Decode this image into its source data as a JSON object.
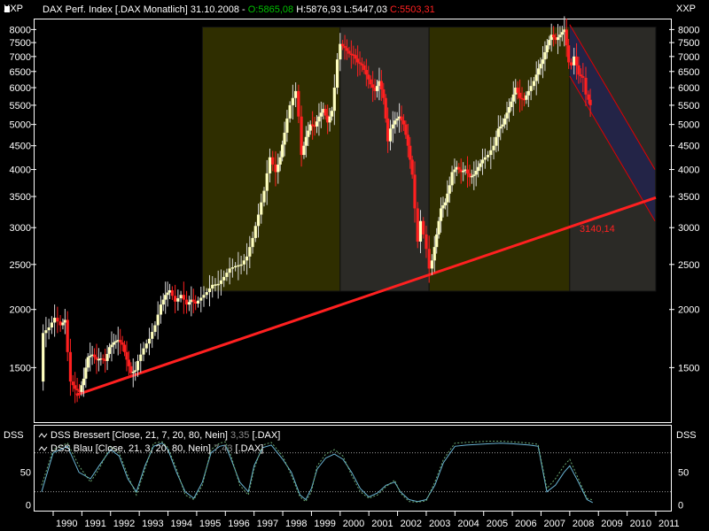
{
  "header": {
    "title": "DAX Perf. Index [.DAX  Monatlich] 31.10.2008 -",
    "open": "O:5865,08",
    "high": "H:5876,93",
    "low": "L:5447,03",
    "close": "C:5503,31",
    "colors": {
      "open": "#00c000",
      "high": "#ffffff",
      "low": "#ffffff",
      "close": "#ff2020"
    }
  },
  "price_axis_label": "XXP",
  "indicator_axis_label": "DSS",
  "trendline_label": "3140,14",
  "indicator": {
    "legend1_prefix": "DSS Bressert [Close, 21, 7, 20, 80, Nein]",
    "legend1_value": "3,35",
    "legend1_suffix": "[.DAX]",
    "legend2_prefix": "DSS Blau [Close, 21, 3, 20, 80, Nein]",
    "legend2_value": "7,43",
    "legend2_suffix": "[.DAX]",
    "ticks": [
      "50",
      "0"
    ]
  },
  "chart_data": [
    {
      "type": "candlestick",
      "title": "DAX Perf. Index [.DAX  Monatlich] 31.10.2008",
      "y_scale": "log",
      "ylim": [
        1150,
        8300
      ],
      "xlim": [
        1989.6,
        2011.0
      ],
      "y_ticks": [
        1500,
        2000,
        2500,
        3000,
        3500,
        4000,
        4500,
        5000,
        5500,
        6000,
        6500,
        7000,
        7500,
        8000
      ],
      "x_ticks": [
        "1990",
        "1991",
        "1992",
        "1993",
        "1994",
        "1995",
        "1996",
        "1997",
        "1998",
        "1999",
        "2000",
        "2001",
        "2002",
        "2003",
        "2004",
        "2005",
        "2006",
        "2007",
        "2008",
        "2009",
        "2010",
        "2011"
      ],
      "grid": false,
      "prices": [
        [
          1989.6,
          1400
        ],
        [
          1989.7,
          1780
        ],
        [
          1989.9,
          1830
        ],
        [
          1990.1,
          1920
        ],
        [
          1990.3,
          1850
        ],
        [
          1990.45,
          1900
        ],
        [
          1990.55,
          1620
        ],
        [
          1990.65,
          1400
        ],
        [
          1990.8,
          1350
        ],
        [
          1990.95,
          1330
        ],
        [
          1991.1,
          1420
        ],
        [
          1991.25,
          1580
        ],
        [
          1991.4,
          1600
        ],
        [
          1991.55,
          1560
        ],
        [
          1991.7,
          1570
        ],
        [
          1991.85,
          1550
        ],
        [
          1992.0,
          1660
        ],
        [
          1992.15,
          1700
        ],
        [
          1992.3,
          1720
        ],
        [
          1992.45,
          1680
        ],
        [
          1992.6,
          1560
        ],
        [
          1992.75,
          1460
        ],
        [
          1992.9,
          1480
        ],
        [
          1993.0,
          1550
        ],
        [
          1993.2,
          1650
        ],
        [
          1993.4,
          1730
        ],
        [
          1993.6,
          1850
        ],
        [
          1993.8,
          2050
        ],
        [
          1993.95,
          2150
        ],
        [
          1994.1,
          2200
        ],
        [
          1994.3,
          2080
        ],
        [
          1994.5,
          2150
        ],
        [
          1994.7,
          2050
        ],
        [
          1994.85,
          2100
        ],
        [
          1995.0,
          2060
        ],
        [
          1995.2,
          2120
        ],
        [
          1995.4,
          2180
        ],
        [
          1995.6,
          2260
        ],
        [
          1995.8,
          2270
        ],
        [
          1996.0,
          2350
        ],
        [
          1996.2,
          2450
        ],
        [
          1996.4,
          2480
        ],
        [
          1996.6,
          2500
        ],
        [
          1996.8,
          2600
        ],
        [
          1997.0,
          2850
        ],
        [
          1997.2,
          3200
        ],
        [
          1997.4,
          3600
        ],
        [
          1997.6,
          4250
        ],
        [
          1997.8,
          3950
        ],
        [
          1997.95,
          4250
        ],
        [
          1998.1,
          4800
        ],
        [
          1998.3,
          5500
        ],
        [
          1998.5,
          5900
        ],
        [
          1998.6,
          5200
        ],
        [
          1998.7,
          4300
        ],
        [
          1998.85,
          4700
        ],
        [
          1999.0,
          5000
        ],
        [
          1999.15,
          4950
        ],
        [
          1999.3,
          5200
        ],
        [
          1999.45,
          5400
        ],
        [
          1999.6,
          5050
        ],
        [
          1999.75,
          5350
        ],
        [
          1999.85,
          6000
        ],
        [
          1999.95,
          6900
        ],
        [
          2000.05,
          7450
        ],
        [
          2000.2,
          7300
        ],
        [
          2000.35,
          7100
        ],
        [
          2000.5,
          7050
        ],
        [
          2000.65,
          6800
        ],
        [
          2000.8,
          6700
        ],
        [
          2000.95,
          6400
        ],
        [
          2001.1,
          6100
        ],
        [
          2001.25,
          5900
        ],
        [
          2001.4,
          6200
        ],
        [
          2001.55,
          5700
        ],
        [
          2001.7,
          4600
        ],
        [
          2001.8,
          4900
        ],
        [
          2001.95,
          5100
        ],
        [
          2002.1,
          5200
        ],
        [
          2002.25,
          5000
        ],
        [
          2002.4,
          4500
        ],
        [
          2002.55,
          3900
        ],
        [
          2002.65,
          3300
        ],
        [
          2002.75,
          2800
        ],
        [
          2002.85,
          3100
        ],
        [
          2002.95,
          2900
        ],
        [
          2003.05,
          2700
        ],
        [
          2003.15,
          2450
        ],
        [
          2003.25,
          2550
        ],
        [
          2003.4,
          2900
        ],
        [
          2003.55,
          3300
        ],
        [
          2003.7,
          3400
        ],
        [
          2003.85,
          3700
        ],
        [
          2003.95,
          3950
        ],
        [
          2004.1,
          4050
        ],
        [
          2004.25,
          3950
        ],
        [
          2004.4,
          4000
        ],
        [
          2004.55,
          3850
        ],
        [
          2004.7,
          3900
        ],
        [
          2004.85,
          4050
        ],
        [
          2005.0,
          4200
        ],
        [
          2005.2,
          4300
        ],
        [
          2005.4,
          4500
        ],
        [
          2005.55,
          4900
        ],
        [
          2005.7,
          5000
        ],
        [
          2005.85,
          5300
        ],
        [
          2006.0,
          5600
        ],
        [
          2006.15,
          6000
        ],
        [
          2006.3,
          5700
        ],
        [
          2006.45,
          5650
        ],
        [
          2006.6,
          5900
        ],
        [
          2006.8,
          6200
        ],
        [
          2006.95,
          6600
        ],
        [
          2007.1,
          6900
        ],
        [
          2007.25,
          7400
        ],
        [
          2007.4,
          7800
        ],
        [
          2007.55,
          7600
        ],
        [
          2007.7,
          7800
        ],
        [
          2007.85,
          8000
        ],
        [
          2008.0,
          6800
        ],
        [
          2008.1,
          6700
        ],
        [
          2008.2,
          7000
        ],
        [
          2008.35,
          6400
        ],
        [
          2008.5,
          6300
        ],
        [
          2008.62,
          5800
        ],
        [
          2008.75,
          5500
        ]
      ],
      "annotations": [
        "3140,14"
      ]
    },
    {
      "type": "line",
      "title": "DSS",
      "ylim": [
        -5,
        100
      ],
      "y_ticks": [
        50,
        0
      ],
      "reference_lines": [
        20,
        80
      ],
      "series": [
        {
          "name": "DSS Bressert [Close, 21, 7, 20, 80, Nein]",
          "color": "#6ab4d4",
          "x": [
            1989.6,
            1990.0,
            1990.5,
            1990.9,
            1991.3,
            1991.6,
            1992.0,
            1992.3,
            1992.6,
            1992.9,
            1993.2,
            1993.5,
            1993.8,
            1994.0,
            1994.3,
            1994.6,
            1994.9,
            1995.2,
            1995.5,
            1995.8,
            1996.0,
            1996.2,
            1996.5,
            1996.8,
            1997.0,
            1997.3,
            1997.6,
            1998.0,
            1998.3,
            1998.6,
            1998.8,
            1999.0,
            1999.2,
            1999.5,
            1999.8,
            2000.1,
            2000.4,
            2000.7,
            2001.0,
            2001.3,
            2001.6,
            2001.9,
            2002.1,
            2002.4,
            2002.7,
            2003.0,
            2003.3,
            2003.6,
            2004.0,
            2004.4,
            2004.8,
            2005.2,
            2005.6,
            2006.0,
            2006.3,
            2006.6,
            2006.9,
            2007.2,
            2007.5,
            2007.8,
            2008.0,
            2008.3,
            2008.6,
            2008.8
          ],
          "values": [
            20,
            80,
            90,
            50,
            40,
            60,
            85,
            75,
            40,
            20,
            60,
            90,
            95,
            85,
            50,
            20,
            10,
            35,
            80,
            90,
            92,
            70,
            35,
            20,
            60,
            88,
            92,
            70,
            50,
            15,
            8,
            25,
            55,
            72,
            78,
            70,
            50,
            25,
            12,
            18,
            30,
            35,
            20,
            8,
            5,
            8,
            30,
            65,
            90,
            92,
            93,
            94,
            95,
            94,
            93,
            92,
            90,
            20,
            30,
            50,
            60,
            35,
            8,
            3.35
          ]
        },
        {
          "name": "DSS Blau [Close, 21, 3, 20, 80, Nein]",
          "color": "#6aa870",
          "x": [
            1989.6,
            1990.0,
            1990.5,
            1990.9,
            1991.3,
            1991.6,
            1992.0,
            1992.3,
            1992.6,
            1992.9,
            1993.2,
            1993.5,
            1993.8,
            1994.0,
            1994.3,
            1994.6,
            1994.9,
            1995.2,
            1995.5,
            1995.8,
            1996.0,
            1996.2,
            1996.5,
            1996.8,
            1997.0,
            1997.3,
            1997.6,
            1998.0,
            1998.3,
            1998.6,
            1998.8,
            1999.0,
            1999.2,
            1999.5,
            1999.8,
            2000.1,
            2000.4,
            2000.7,
            2001.0,
            2001.3,
            2001.6,
            2001.9,
            2002.1,
            2002.4,
            2002.7,
            2003.0,
            2003.3,
            2003.6,
            2004.0,
            2004.4,
            2004.8,
            2005.2,
            2005.6,
            2006.0,
            2006.3,
            2006.6,
            2006.9,
            2007.2,
            2007.5,
            2007.8,
            2008.0,
            2008.3,
            2008.6,
            2008.8
          ],
          "values": [
            30,
            85,
            95,
            60,
            35,
            55,
            90,
            80,
            45,
            15,
            55,
            95,
            97,
            88,
            55,
            15,
            8,
            30,
            85,
            95,
            97,
            75,
            30,
            15,
            55,
            92,
            96,
            75,
            45,
            12,
            5,
            20,
            60,
            78,
            85,
            75,
            45,
            20,
            10,
            15,
            28,
            38,
            18,
            5,
            4,
            6,
            35,
            70,
            95,
            96,
            97,
            98,
            98,
            97,
            96,
            95,
            93,
            25,
            40,
            60,
            70,
            40,
            10,
            7.43
          ]
        }
      ]
    }
  ]
}
